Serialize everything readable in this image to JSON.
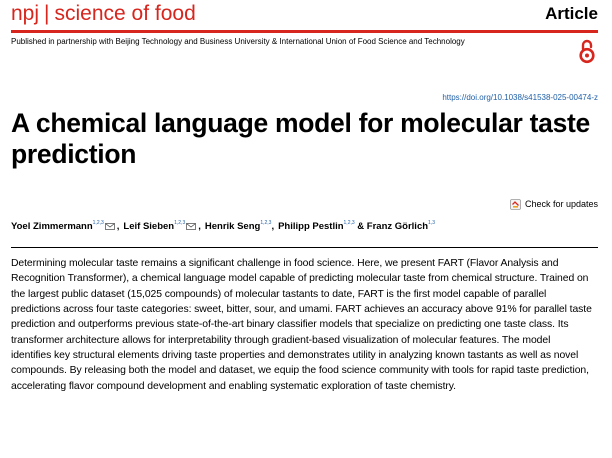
{
  "header": {
    "journal_npj": "npj",
    "journal_separator": "|",
    "journal_name": "science of food",
    "article_type": "Article",
    "partnership": "Published in partnership with Beijing Technology and Business University & International Union of Food Science and Technology",
    "open_access_icon": "open-access-lock-icon"
  },
  "doi": "https://doi.org/10.1038/s41538-025-00474-z",
  "title": "A chemical language model for molecular taste prediction",
  "check_updates": "Check for updates",
  "authors": [
    {
      "name": "Yoel Zimmermann",
      "affil": "1,2,3",
      "corresponding": true
    },
    {
      "name": "Leif Sieben",
      "affil": "1,2,3",
      "corresponding": true
    },
    {
      "name": "Henrik Seng",
      "affil": "1,2,3",
      "corresponding": false
    },
    {
      "name": "Philipp Pestlin",
      "affil": "1,2,3",
      "corresponding": false
    },
    {
      "name": "Franz Görlich",
      "affil": "1,3",
      "corresponding": false
    }
  ],
  "author_connector": "&",
  "abstract": "Determining molecular taste remains a significant challenge in food science. Here, we present FART (Flavor Analysis and Recognition Transformer), a chemical language model capable of predicting molecular taste from chemical structure. Trained on the largest public dataset (15,025 compounds) of molecular tastants to date, FART is the first model capable of parallel predictions across four taste categories: sweet, bitter, sour, and umami. FART achieves an accuracy above 91% for parallel taste prediction and outperforms previous state-of-the-art binary classifier models that specialize on predicting one taste class. Its transformer architecture allows for interpretability through gradient-based visualization of molecular features. The model identifies key structural elements driving taste properties and demonstrates utility in analyzing known tastants as well as novel compounds. By releasing both the model and dataset, we equip the food science community with tools for rapid taste prediction, accelerating flavor compound development and enabling systematic exploration of taste chemistry.",
  "colors": {
    "brand_red": "#d7261e",
    "link_blue": "#1f5fa8"
  }
}
